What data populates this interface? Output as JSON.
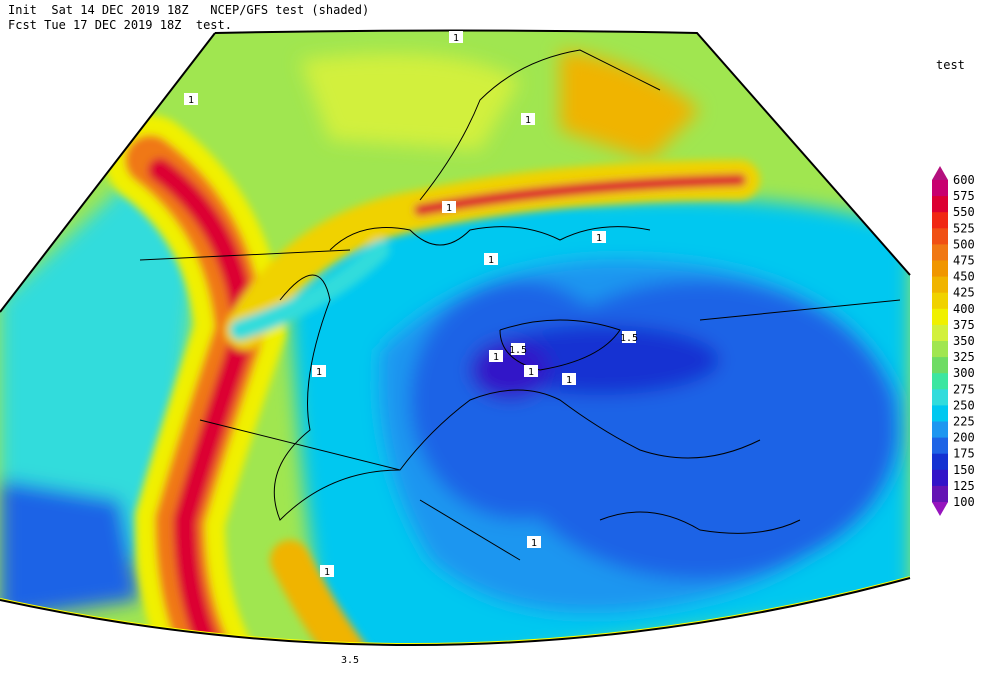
{
  "header": {
    "line1": "Init  Sat 14 DEC 2019 18Z   NCEP/GFS test (shaded)",
    "line2": "Fcst Tue 17 DEC 2019 18Z  test."
  },
  "legend": {
    "title": "test",
    "levels": [
      600,
      575,
      550,
      525,
      500,
      475,
      450,
      425,
      400,
      375,
      350,
      325,
      300,
      275,
      250,
      225,
      200,
      175,
      150,
      125,
      100
    ],
    "colors": [
      "#b4107e",
      "#c8006e",
      "#dc0032",
      "#f02814",
      "#f05014",
      "#f07814",
      "#f09600",
      "#f0b400",
      "#f0d200",
      "#f0f000",
      "#d2f03c",
      "#a0e650",
      "#6edc64",
      "#3ce6a0",
      "#32dcdc",
      "#00c8f0",
      "#1e96f0",
      "#1e64e6",
      "#1432d2",
      "#3214c8",
      "#6414b4",
      "#9614be"
    ]
  },
  "contour_labels": [
    "1",
    "1",
    "1",
    "1",
    "1",
    "1",
    "1.5",
    "1.5",
    "1",
    "1",
    "1",
    "1",
    "1",
    "1",
    "3.5"
  ]
}
